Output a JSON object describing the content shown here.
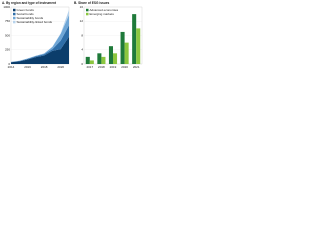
{
  "chart_data": [
    {
      "type": "area",
      "title": "A. By region and type of instrument",
      "x": [
        2014,
        2015,
        2016,
        2017,
        2018,
        2019,
        2020,
        2021
      ],
      "series": [
        {
          "name": "Green bonds",
          "color": "#0b3d6b",
          "values": [
            30,
            45,
            80,
            120,
            150,
            230,
            260,
            480
          ]
        },
        {
          "name": "Social bonds",
          "color": "#2f6ea8",
          "values": [
            5,
            8,
            10,
            15,
            20,
            30,
            150,
            200
          ]
        },
        {
          "name": "Sustainability bonds",
          "color": "#6fa6d6",
          "values": [
            2,
            4,
            6,
            10,
            15,
            40,
            120,
            180
          ]
        },
        {
          "name": "Sustainability-linked bonds",
          "color": "#b7d3ec",
          "values": [
            0,
            0,
            0,
            0,
            2,
            5,
            10,
            90
          ]
        }
      ],
      "xlim": [
        2014,
        2021
      ],
      "ylim": [
        0,
        1000
      ],
      "yticks": [
        0,
        250,
        500,
        750,
        1000
      ],
      "xticks": [
        2014,
        2016,
        2018,
        2020
      ],
      "grid": true
    },
    {
      "type": "bar",
      "title": "B. Share of ESG issues",
      "categories": [
        "2017",
        "2018",
        "2019",
        "2020",
        "2021"
      ],
      "series": [
        {
          "name": "Advanced economies",
          "color": "#1f7a3a",
          "values": [
            2,
            3,
            5,
            9,
            14
          ]
        },
        {
          "name": "Emerging markets",
          "color": "#8cc63f",
          "values": [
            1,
            2,
            3,
            6,
            10
          ]
        }
      ],
      "ylim": [
        0,
        16
      ],
      "yticks": [
        0,
        4,
        8,
        12,
        16
      ],
      "grid": true
    }
  ]
}
